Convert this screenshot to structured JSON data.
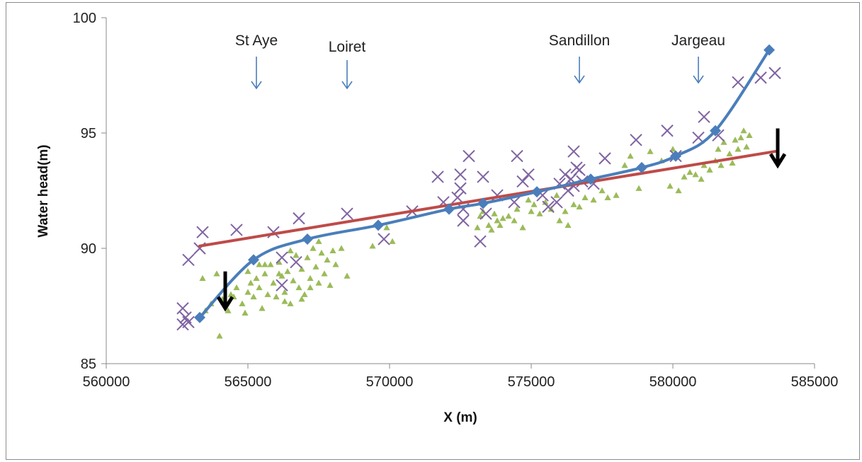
{
  "chart_data": {
    "type": "scatter",
    "xlabel": "X (m)",
    "ylabel": "Water head(m)",
    "xlim": [
      560000,
      585000
    ],
    "ylim": [
      85,
      100
    ],
    "xticks": [
      560000,
      565000,
      570000,
      575000,
      580000,
      585000
    ],
    "yticks": [
      85,
      90,
      95,
      100
    ],
    "xtick_labels": [
      "560000",
      "565000",
      "570000",
      "575000",
      "580000",
      "585000"
    ],
    "ytick_labels": [
      "85",
      "90",
      "95",
      "100"
    ],
    "grid": false,
    "legend": "none",
    "colors": {
      "blue_line": "#4a7ebb",
      "blue_marker": "#4a7ebb",
      "red_line": "#be4b48",
      "purple_cross": "#8064a2",
      "green_triangle": "#9bbb59",
      "town_arrow": "#4a7ebb",
      "black_arrow": "#000000"
    },
    "series": [
      {
        "kind": "smooth-line-with-diamonds",
        "points": [
          [
            563300,
            87.0
          ],
          [
            565200,
            89.5
          ],
          [
            567100,
            90.4
          ],
          [
            569600,
            91.0
          ],
          [
            572100,
            91.7
          ],
          [
            573300,
            91.95
          ],
          [
            575200,
            92.45
          ],
          [
            577100,
            93.0
          ],
          [
            578900,
            93.5
          ],
          [
            580100,
            94.0
          ],
          [
            581500,
            95.1
          ],
          [
            583400,
            98.6
          ]
        ]
      },
      {
        "kind": "straight-line",
        "points": [
          [
            563300,
            90.1
          ],
          [
            583600,
            94.2
          ]
        ]
      },
      {
        "kind": "cross-markers",
        "points": [
          [
            562700,
            87.4
          ],
          [
            562800,
            87.0
          ],
          [
            562900,
            86.8
          ],
          [
            562700,
            86.7
          ],
          [
            562900,
            89.5
          ],
          [
            563300,
            90.0
          ],
          [
            563400,
            90.7
          ],
          [
            564600,
            90.8
          ],
          [
            565900,
            90.7
          ],
          [
            566800,
            91.3
          ],
          [
            566200,
            89.6
          ],
          [
            566700,
            89.4
          ],
          [
            566200,
            88.4
          ],
          [
            568500,
            91.5
          ],
          [
            569800,
            90.4
          ],
          [
            570800,
            91.6
          ],
          [
            571700,
            93.1
          ],
          [
            571900,
            92.0
          ],
          [
            572500,
            93.2
          ],
          [
            572500,
            92.6
          ],
          [
            572400,
            92.2
          ],
          [
            572800,
            94.0
          ],
          [
            572600,
            91.7
          ],
          [
            572600,
            91.2
          ],
          [
            573300,
            93.1
          ],
          [
            573400,
            91.5
          ],
          [
            573800,
            92.3
          ],
          [
            573200,
            90.3
          ],
          [
            574400,
            92.0
          ],
          [
            574500,
            94.0
          ],
          [
            574700,
            92.9
          ],
          [
            574900,
            93.2
          ],
          [
            575400,
            92.3
          ],
          [
            575600,
            91.8
          ],
          [
            576000,
            92.8
          ],
          [
            576200,
            93.2
          ],
          [
            576400,
            93.0
          ],
          [
            576500,
            92.7
          ],
          [
            576500,
            94.2
          ],
          [
            576600,
            93.5
          ],
          [
            576300,
            92.5
          ],
          [
            576700,
            93.4
          ],
          [
            576800,
            92.9
          ],
          [
            575900,
            92.0
          ],
          [
            577600,
            93.9
          ],
          [
            577200,
            92.8
          ],
          [
            578700,
            94.7
          ],
          [
            579800,
            95.1
          ],
          [
            580100,
            94.0
          ],
          [
            580900,
            94.8
          ],
          [
            581100,
            95.7
          ],
          [
            581600,
            94.9
          ],
          [
            582300,
            97.2
          ],
          [
            583100,
            97.4
          ],
          [
            583600,
            97.6
          ]
        ]
      },
      {
        "kind": "triangle-markers",
        "points": [
          [
            563300,
            87.0
          ],
          [
            563500,
            87.3
          ],
          [
            563400,
            88.7
          ],
          [
            563900,
            88.9
          ],
          [
            563700,
            87.6
          ],
          [
            564000,
            86.2
          ],
          [
            564100,
            87.8
          ],
          [
            564400,
            88.0
          ],
          [
            564300,
            87.3
          ],
          [
            564500,
            87.9
          ],
          [
            564600,
            88.3
          ],
          [
            564800,
            87.6
          ],
          [
            564900,
            87.2
          ],
          [
            565000,
            89.0
          ],
          [
            565100,
            88.5
          ],
          [
            565200,
            87.9
          ],
          [
            565300,
            88.7
          ],
          [
            565400,
            88.3
          ],
          [
            565500,
            87.4
          ],
          [
            565600,
            88.9
          ],
          [
            565700,
            88.0
          ],
          [
            565800,
            89.3
          ],
          [
            565900,
            88.5
          ],
          [
            566000,
            87.9
          ],
          [
            566100,
            89.4
          ],
          [
            566200,
            88.8
          ],
          [
            566300,
            88.1
          ],
          [
            566400,
            89.0
          ],
          [
            566500,
            87.6
          ],
          [
            566600,
            88.6
          ],
          [
            566700,
            89.7
          ],
          [
            566800,
            88.3
          ],
          [
            566900,
            89.1
          ],
          [
            567000,
            88.0
          ],
          [
            567100,
            89.6
          ],
          [
            567200,
            88.7
          ],
          [
            567300,
            90.0
          ],
          [
            567400,
            89.2
          ],
          [
            567500,
            88.5
          ],
          [
            567600,
            89.8
          ],
          [
            567700,
            88.9
          ],
          [
            567800,
            89.5
          ],
          [
            567900,
            88.4
          ],
          [
            568000,
            89.9
          ],
          [
            568100,
            89.3
          ],
          [
            568300,
            90.0
          ],
          [
            568500,
            88.8
          ],
          [
            565000,
            88.1
          ],
          [
            565600,
            89.3
          ],
          [
            566300,
            87.7
          ],
          [
            566500,
            89.9
          ],
          [
            566900,
            87.8
          ],
          [
            567200,
            88.3
          ],
          [
            567500,
            90.3
          ],
          [
            566100,
            88.9
          ],
          [
            565400,
            89.3
          ],
          [
            569400,
            90.1
          ],
          [
            569900,
            90.9
          ],
          [
            570100,
            90.3
          ],
          [
            573100,
            90.9
          ],
          [
            573200,
            91.4
          ],
          [
            573300,
            91.6
          ],
          [
            573500,
            91.0
          ],
          [
            573600,
            90.8
          ],
          [
            573700,
            91.5
          ],
          [
            573800,
            91.2
          ],
          [
            573900,
            91.0
          ],
          [
            574000,
            91.3
          ],
          [
            574200,
            91.4
          ],
          [
            574400,
            91.2
          ],
          [
            574500,
            91.7
          ],
          [
            574700,
            90.9
          ],
          [
            574900,
            92.1
          ],
          [
            575000,
            91.6
          ],
          [
            575100,
            91.9
          ],
          [
            575300,
            91.5
          ],
          [
            575500,
            92.0
          ],
          [
            575700,
            91.7
          ],
          [
            575900,
            92.3
          ],
          [
            576000,
            91.2
          ],
          [
            576200,
            91.6
          ],
          [
            576300,
            91.0
          ],
          [
            576500,
            91.9
          ],
          [
            576700,
            91.8
          ],
          [
            576900,
            92.2
          ],
          [
            577200,
            92.1
          ],
          [
            577500,
            92.5
          ],
          [
            577700,
            92.2
          ],
          [
            578000,
            92.3
          ],
          [
            578300,
            93.6
          ],
          [
            578500,
            94.0
          ],
          [
            578800,
            92.6
          ],
          [
            579200,
            94.2
          ],
          [
            579600,
            93.8
          ],
          [
            579900,
            92.7
          ],
          [
            580000,
            94.3
          ],
          [
            580200,
            92.5
          ],
          [
            580400,
            93.1
          ],
          [
            580600,
            93.3
          ],
          [
            580800,
            93.2
          ],
          [
            581000,
            93.0
          ],
          [
            581100,
            93.6
          ],
          [
            581300,
            93.4
          ],
          [
            581500,
            93.8
          ],
          [
            581600,
            94.3
          ],
          [
            581700,
            93.6
          ],
          [
            581800,
            94.6
          ],
          [
            582000,
            94.1
          ],
          [
            582100,
            93.7
          ],
          [
            582200,
            94.7
          ],
          [
            582300,
            94.3
          ],
          [
            582400,
            94.8
          ],
          [
            582500,
            95.1
          ],
          [
            582600,
            94.4
          ],
          [
            582700,
            94.9
          ]
        ]
      }
    ],
    "annotations": [
      {
        "kind": "town-arrow",
        "text": "St Aye",
        "x": 565300
      },
      {
        "kind": "town-arrow",
        "text": "Loiret",
        "x": 568500
      },
      {
        "kind": "town-arrow",
        "text": "Sandillon",
        "x": 576700
      },
      {
        "kind": "town-arrow",
        "text": "Jargeau",
        "x": 580900
      },
      {
        "kind": "black-arrow",
        "x": 564200,
        "y_from": 89.0,
        "y_to": 87.4
      },
      {
        "kind": "black-arrow",
        "x": 583700,
        "y_from": 95.2,
        "y_to": 93.6
      }
    ]
  }
}
